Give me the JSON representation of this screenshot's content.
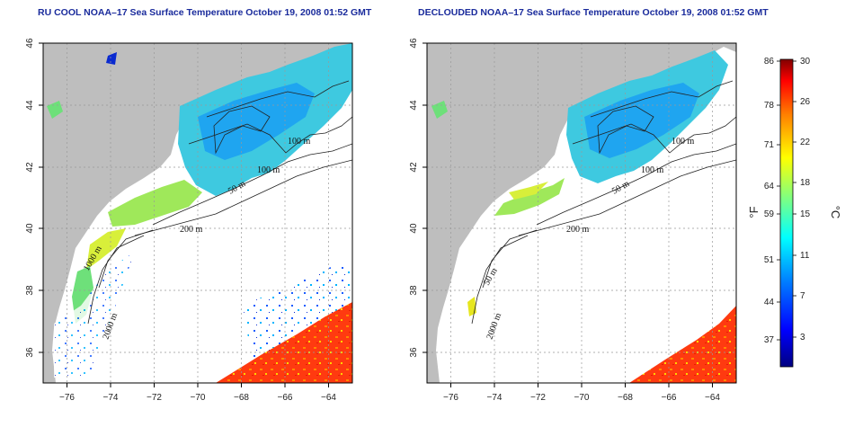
{
  "maps": [
    {
      "title": "RU COOL NOAA–17 Sea Surface Temperature October 19, 2008 01:52 GMT",
      "contours": [
        "100 m",
        "100 m",
        "50 m",
        "200 m",
        "1000 m",
        "2000 m"
      ]
    },
    {
      "title": "DECLOUDED NOAA–17 Sea Surface Temperature October 19, 2008 01:52 GMT",
      "contours": [
        "100 m",
        "100 m",
        "50 m",
        "200 m",
        "50 m",
        "2000 m"
      ]
    }
  ],
  "axes": {
    "x_ticks": [
      "−76",
      "−74",
      "−72",
      "−70",
      "−68",
      "−66",
      "−64"
    ],
    "y_ticks": [
      "46",
      "44",
      "42",
      "40",
      "38",
      "36"
    ],
    "lon_range": [
      -77.2,
      -63.0
    ],
    "lat_range": [
      35.0,
      46.0
    ]
  },
  "colorbar": {
    "fahrenheit_ticks": [
      "86",
      "78",
      "71",
      "64",
      "59",
      "51",
      "44",
      "37"
    ],
    "celsius_ticks": [
      "30",
      "26",
      "22",
      "18",
      "15",
      "11",
      "7",
      "3"
    ],
    "fahrenheit_unit": "°F",
    "celsius_unit": "°C",
    "colors": [
      "#000080",
      "#0000ff",
      "#0080ff",
      "#00ffff",
      "#80ff80",
      "#ffff00",
      "#ff8000",
      "#ff0000",
      "#800000"
    ]
  },
  "colors": {
    "land": "#bebebe",
    "cloud": "#ffffff",
    "title": "#1a2b9c"
  }
}
